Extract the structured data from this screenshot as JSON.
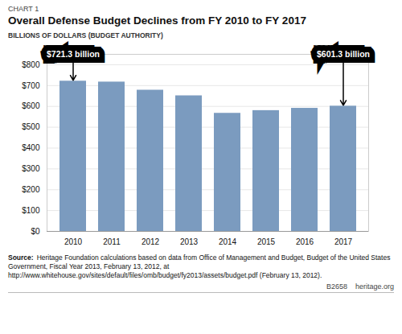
{
  "chart_data": {
    "type": "bar",
    "chart_label": "CHART 1",
    "title": "Overall Defense Budget Declines from FY 2010 to FY 2017",
    "ylabel": "BILLIONS OF DOLLARS (BUDGET AUTHORITY)",
    "categories": [
      "2010",
      "2011",
      "2012",
      "2013",
      "2014",
      "2015",
      "2016",
      "2017"
    ],
    "values": [
      721.3,
      717.0,
      678.0,
      651.0,
      567.0,
      580.0,
      591.0,
      601.3
    ],
    "color": "#7b9bbf",
    "ylim": [
      0,
      850
    ],
    "yticks": [
      {
        "value": 0,
        "label": "$0"
      },
      {
        "value": 100,
        "label": "$100"
      },
      {
        "value": 200,
        "label": "$200"
      },
      {
        "value": 300,
        "label": "$300"
      },
      {
        "value": 400,
        "label": "$400"
      },
      {
        "value": 500,
        "label": "$500"
      },
      {
        "value": 600,
        "label": "$600"
      },
      {
        "value": 700,
        "label": "$700"
      },
      {
        "value": 800,
        "label": "$800"
      }
    ],
    "grid": true,
    "annotations": [
      {
        "text": "$721.3 billion",
        "x": "2010",
        "y": 721.3
      },
      {
        "text": "$601.3 billion",
        "x": "2017",
        "y": 601.3
      }
    ],
    "source_label": "Source:",
    "source": "Heritage Foundation calculations based on data from Office of Management and Budget, Budget of the United States Government, Fiscal Year 2013, February 13, 2012, at http://www.whitehouse.gov/sites/default/files/omb/budget/fy2013/assets/budget.pdf (February 13, 2012).",
    "footer": "B2658    heritage.org"
  }
}
